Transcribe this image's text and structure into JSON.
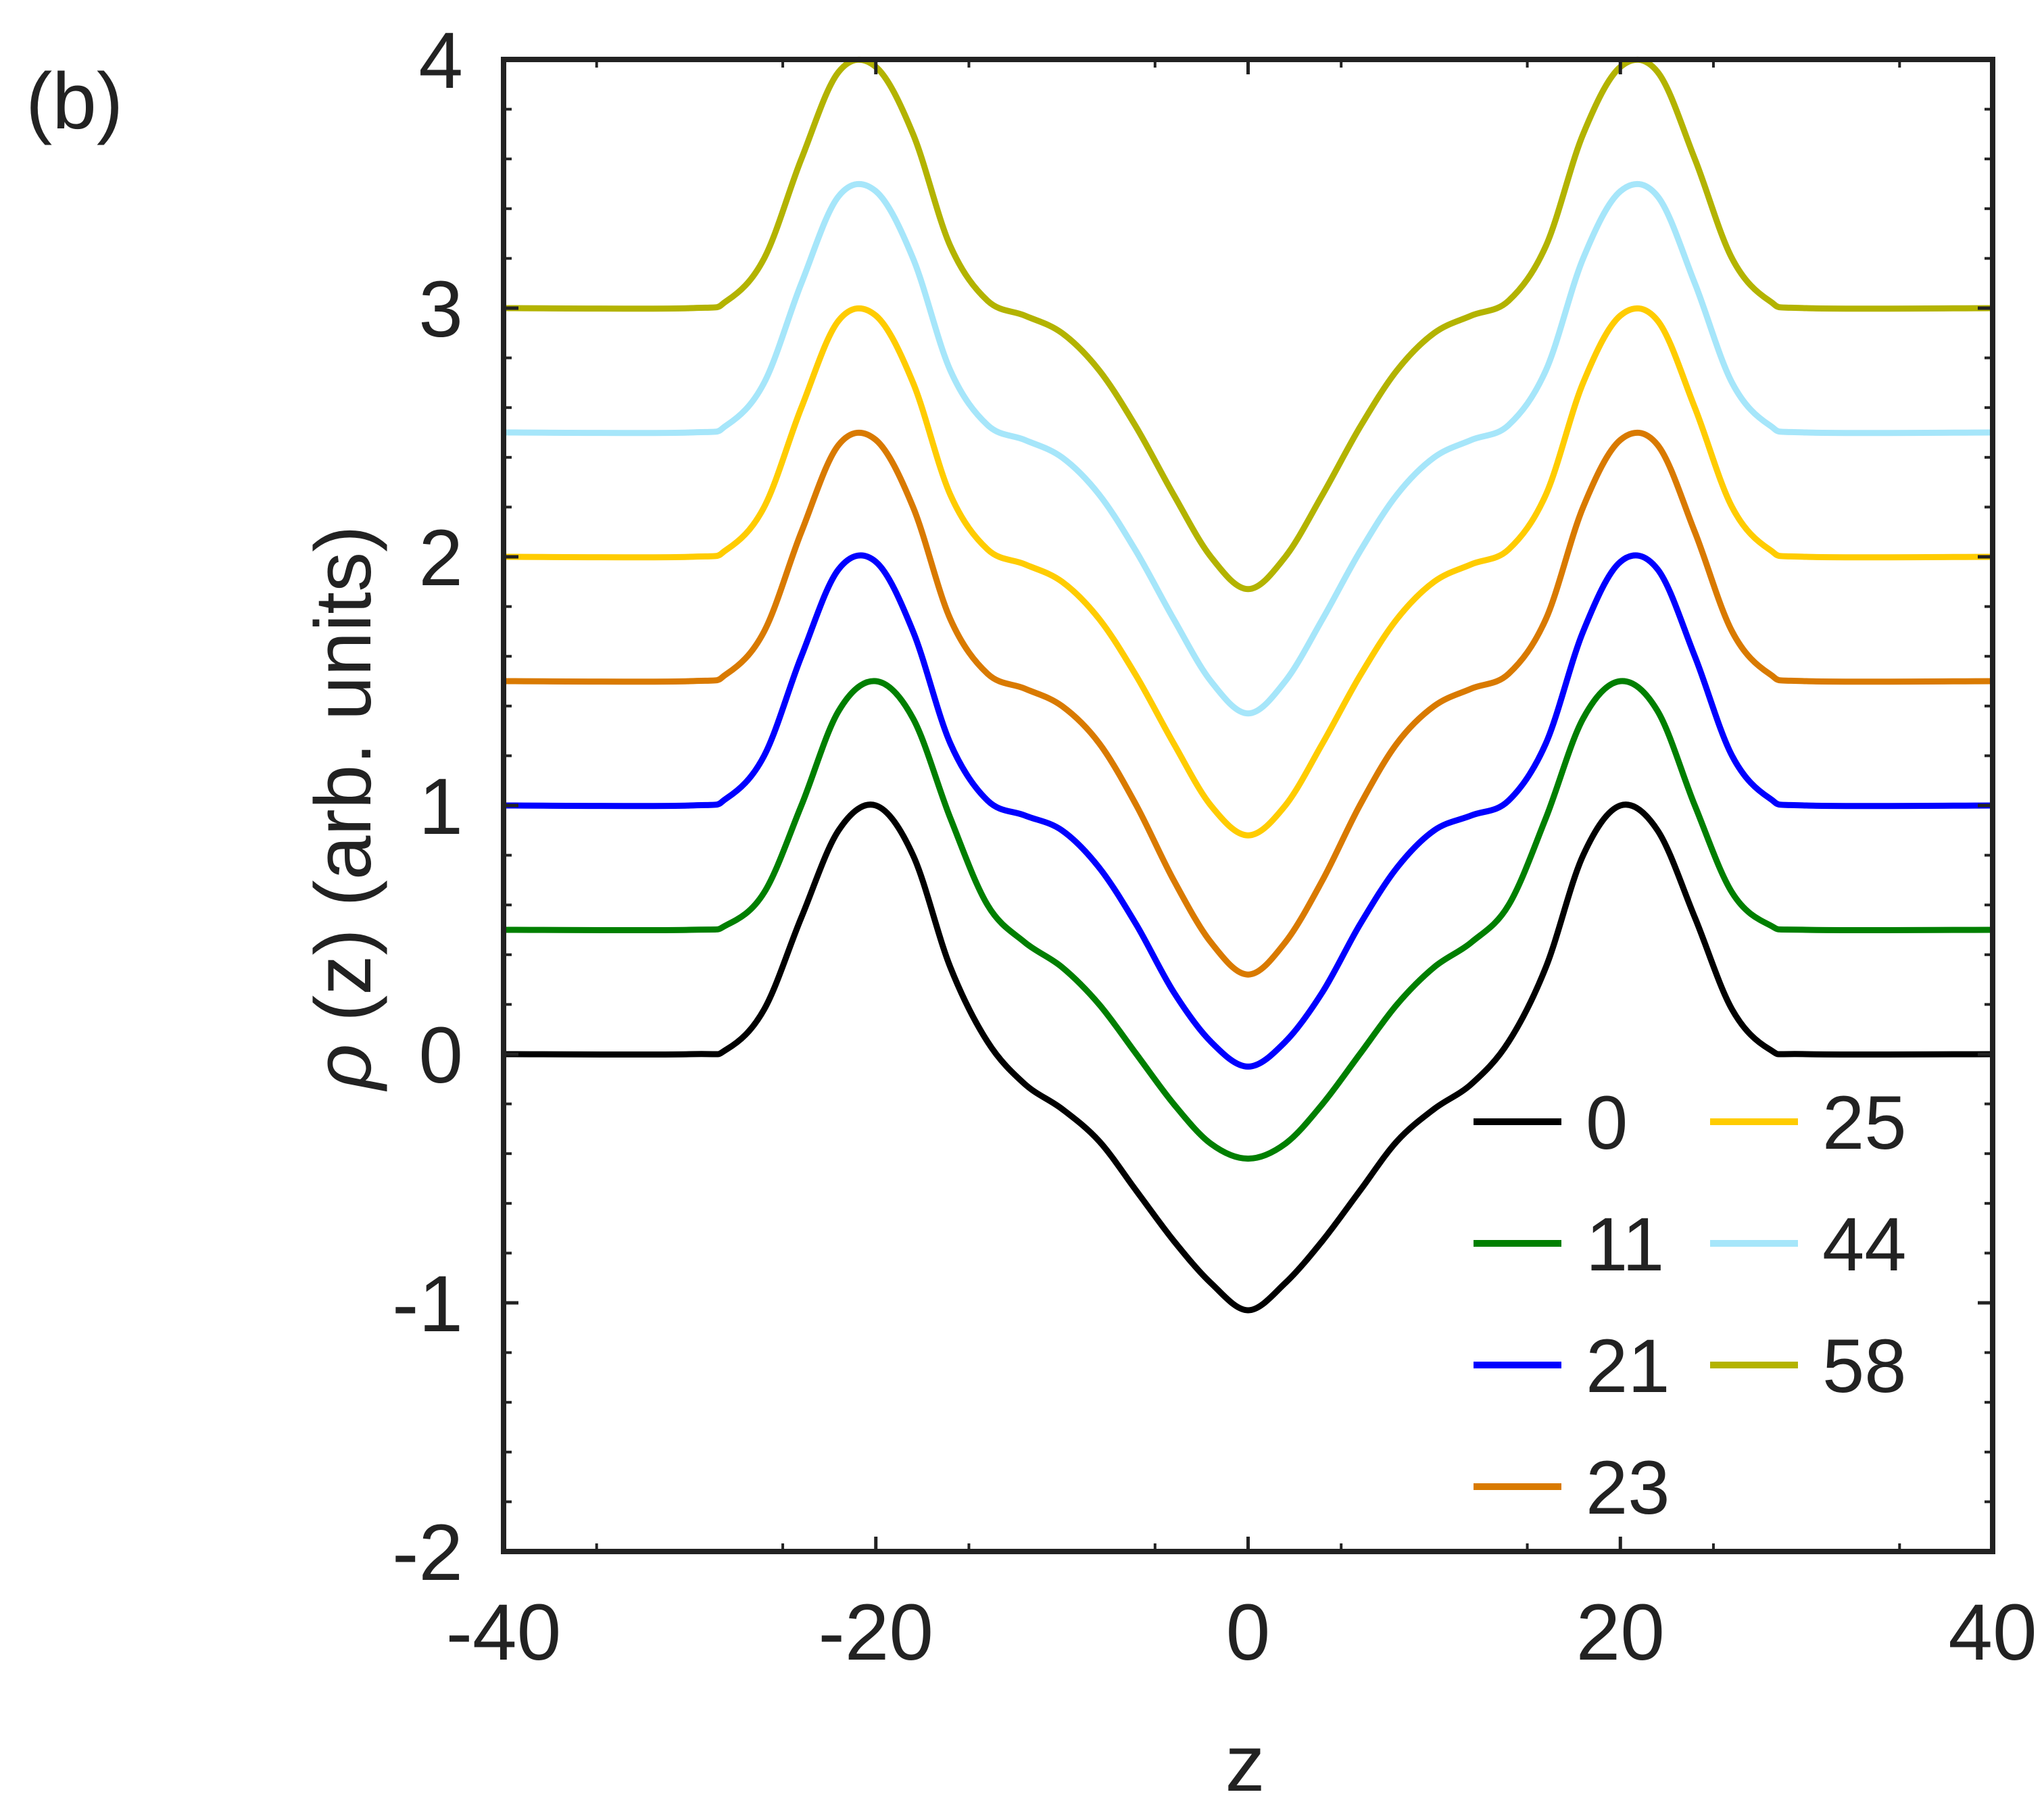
{
  "chart_data": {
    "type": "line",
    "panel_label": "(b)",
    "xlabel": "z",
    "ylabel_symbol": "ρ",
    "ylabel_rest": "(z) (arb. units)",
    "xlim": [
      -40,
      40
    ],
    "ylim": [
      -2,
      4
    ],
    "xticks": [
      -40,
      -20,
      0,
      20,
      40
    ],
    "yticks": [
      -2,
      -1,
      0,
      1,
      2,
      3,
      4
    ],
    "x_tick_labels": [
      "-40",
      "-20",
      "0",
      "20",
      "40"
    ],
    "y_tick_labels": [
      "-2",
      "-1",
      "0",
      "1",
      "2",
      "3",
      "4"
    ],
    "grid": false,
    "legend": {
      "placement": "bottom-right",
      "columns": 2
    },
    "x": [
      -40,
      -30,
      -28,
      -26,
      -24,
      -22,
      -20,
      -18,
      -16,
      -14,
      -12,
      -10,
      -8,
      -6,
      -4,
      -2,
      0,
      2,
      4,
      6,
      8,
      10,
      12,
      14,
      16,
      18,
      20,
      22,
      24,
      26,
      28,
      30,
      40
    ],
    "series": [
      {
        "name": "0",
        "color": "#000000",
        "y": [
          0,
          0,
          0.02,
          0.18,
          0.55,
          0.9,
          1.0,
          0.8,
          0.35,
          0.05,
          -0.12,
          -0.22,
          -0.35,
          -0.55,
          -0.75,
          -0.92,
          -1.03,
          -0.92,
          -0.75,
          -0.55,
          -0.35,
          -0.22,
          -0.12,
          0.05,
          0.35,
          0.8,
          1.0,
          0.9,
          0.55,
          0.18,
          0.02,
          0,
          0
        ]
      },
      {
        "name": "11",
        "color": "#007f00",
        "y": [
          0.5,
          0.5,
          0.52,
          0.65,
          1.0,
          1.38,
          1.5,
          1.35,
          0.95,
          0.6,
          0.45,
          0.35,
          0.2,
          0.0,
          -0.2,
          -0.36,
          -0.42,
          -0.36,
          -0.2,
          0.0,
          0.2,
          0.35,
          0.45,
          0.6,
          0.95,
          1.35,
          1.5,
          1.38,
          1.0,
          0.65,
          0.52,
          0.5,
          0.5
        ]
      },
      {
        "name": "21",
        "color": "#0000ff",
        "y": [
          1.0,
          1.0,
          1.03,
          1.2,
          1.6,
          1.95,
          1.98,
          1.7,
          1.25,
          1.02,
          0.96,
          0.9,
          0.75,
          0.52,
          0.25,
          0.05,
          -0.05,
          0.05,
          0.25,
          0.52,
          0.75,
          0.9,
          0.96,
          1.02,
          1.25,
          1.7,
          1.98,
          1.95,
          1.6,
          1.2,
          1.03,
          1.0,
          1.0
        ]
      },
      {
        "name": "23",
        "color": "#d97a00",
        "y": [
          1.5,
          1.5,
          1.53,
          1.7,
          2.1,
          2.45,
          2.47,
          2.2,
          1.75,
          1.53,
          1.47,
          1.4,
          1.25,
          1.0,
          0.7,
          0.45,
          0.32,
          0.45,
          0.7,
          1.0,
          1.25,
          1.4,
          1.47,
          1.53,
          1.75,
          2.2,
          2.47,
          2.45,
          2.1,
          1.7,
          1.53,
          1.5,
          1.5
        ]
      },
      {
        "name": "25",
        "color": "#ffcc00",
        "y": [
          2.0,
          2.0,
          2.03,
          2.2,
          2.6,
          2.95,
          2.97,
          2.7,
          2.25,
          2.03,
          1.97,
          1.9,
          1.75,
          1.52,
          1.25,
          1.0,
          0.88,
          1.0,
          1.25,
          1.52,
          1.75,
          1.9,
          1.97,
          2.03,
          2.25,
          2.7,
          2.97,
          2.95,
          2.6,
          2.2,
          2.03,
          2.0,
          2.0
        ]
      },
      {
        "name": "44",
        "color": "#a6e6fa",
        "y": [
          2.5,
          2.5,
          2.53,
          2.7,
          3.1,
          3.45,
          3.47,
          3.2,
          2.75,
          2.53,
          2.47,
          2.4,
          2.25,
          2.02,
          1.75,
          1.5,
          1.37,
          1.5,
          1.75,
          2.02,
          2.25,
          2.4,
          2.47,
          2.53,
          2.75,
          3.2,
          3.47,
          3.45,
          3.1,
          2.7,
          2.53,
          2.5,
          2.5
        ]
      },
      {
        "name": "58",
        "color": "#b3b300",
        "y": [
          3.0,
          3.0,
          3.03,
          3.2,
          3.6,
          3.95,
          3.97,
          3.7,
          3.25,
          3.03,
          2.97,
          2.9,
          2.75,
          2.52,
          2.25,
          2.0,
          1.87,
          2.0,
          2.25,
          2.52,
          2.75,
          2.9,
          2.97,
          3.03,
          3.25,
          3.7,
          3.97,
          3.95,
          3.6,
          3.2,
          3.03,
          3.0,
          3.0
        ]
      }
    ]
  }
}
